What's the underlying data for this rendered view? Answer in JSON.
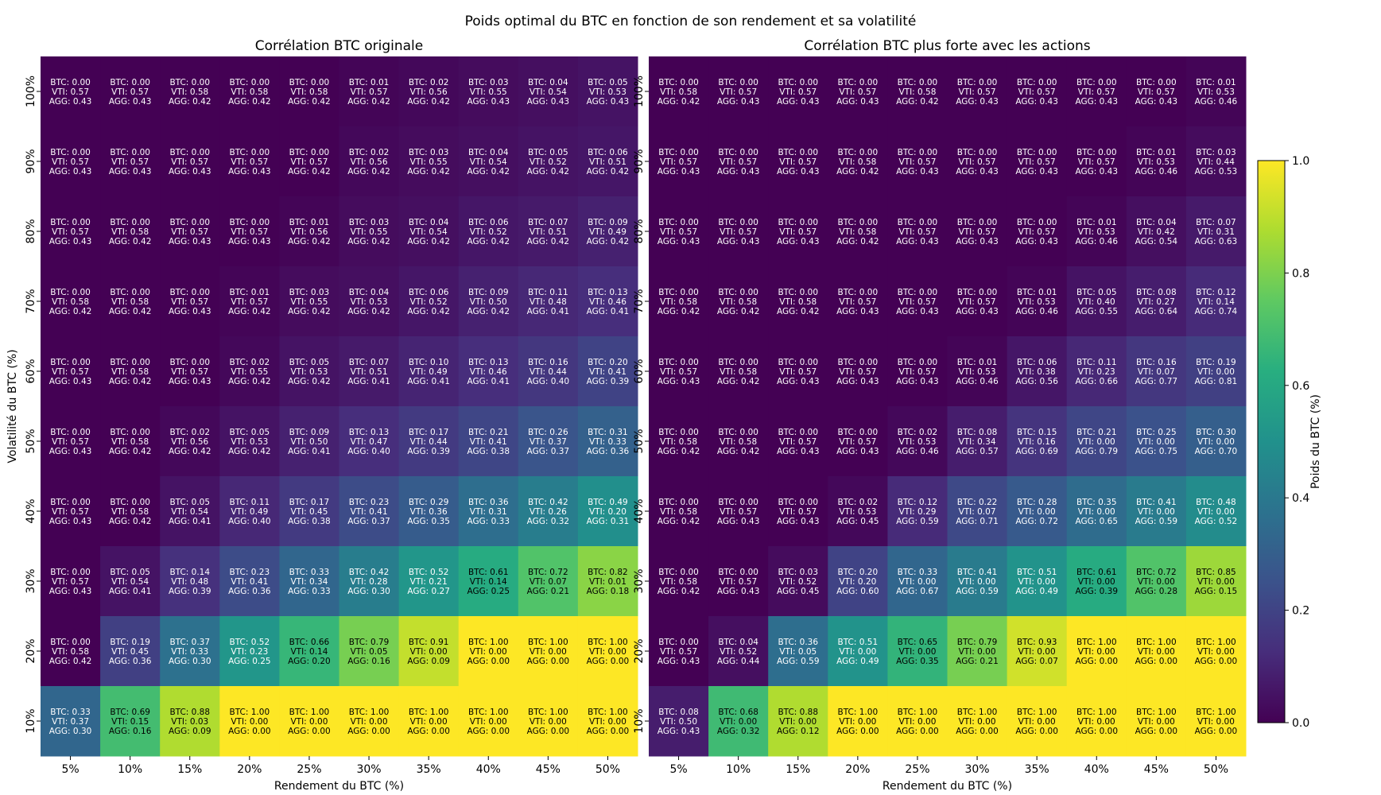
{
  "title": "Poids optimal du BTC en fonction de son rendement et sa volatilité",
  "chart_data": [
    {
      "type": "heatmap",
      "title": "Corrélation BTC originale",
      "xlabel": "Rendement du BTC (%)",
      "ylabel": "Volatilité du BTC (%)",
      "x_categories": [
        "5%",
        "10%",
        "15%",
        "20%",
        "25%",
        "30%",
        "35%",
        "40%",
        "45%",
        "50%"
      ],
      "y_categories": [
        "100%",
        "90%",
        "80%",
        "70%",
        "60%",
        "50%",
        "40%",
        "30%",
        "20%",
        "10%"
      ],
      "labels": [
        "BTC",
        "VTI",
        "AGG"
      ],
      "btc": [
        [
          0.0,
          0.0,
          0.0,
          0.0,
          0.0,
          0.01,
          0.02,
          0.03,
          0.04,
          0.05
        ],
        [
          0.0,
          0.0,
          0.0,
          0.0,
          0.0,
          0.02,
          0.03,
          0.04,
          0.05,
          0.06
        ],
        [
          0.0,
          0.0,
          0.0,
          0.0,
          0.01,
          0.03,
          0.04,
          0.06,
          0.07,
          0.09
        ],
        [
          0.0,
          0.0,
          0.0,
          0.01,
          0.03,
          0.04,
          0.06,
          0.09,
          0.11,
          0.13
        ],
        [
          0.0,
          0.0,
          0.0,
          0.02,
          0.05,
          0.07,
          0.1,
          0.13,
          0.16,
          0.2
        ],
        [
          0.0,
          0.0,
          0.02,
          0.05,
          0.09,
          0.13,
          0.17,
          0.21,
          0.26,
          0.31
        ],
        [
          0.0,
          0.0,
          0.05,
          0.11,
          0.17,
          0.23,
          0.29,
          0.36,
          0.42,
          0.49
        ],
        [
          0.0,
          0.05,
          0.14,
          0.23,
          0.33,
          0.42,
          0.52,
          0.61,
          0.72,
          0.82
        ],
        [
          0.0,
          0.19,
          0.37,
          0.52,
          0.66,
          0.79,
          0.91,
          1.0,
          1.0,
          1.0
        ],
        [
          0.33,
          0.69,
          0.88,
          1.0,
          1.0,
          1.0,
          1.0,
          1.0,
          1.0,
          1.0
        ]
      ],
      "vti": [
        [
          0.57,
          0.57,
          0.58,
          0.58,
          0.58,
          0.57,
          0.56,
          0.55,
          0.54,
          0.53
        ],
        [
          0.57,
          0.57,
          0.57,
          0.57,
          0.57,
          0.56,
          0.55,
          0.54,
          0.52,
          0.51
        ],
        [
          0.57,
          0.58,
          0.57,
          0.57,
          0.56,
          0.55,
          0.54,
          0.52,
          0.51,
          0.49
        ],
        [
          0.58,
          0.58,
          0.57,
          0.57,
          0.55,
          0.53,
          0.52,
          0.5,
          0.48,
          0.46
        ],
        [
          0.57,
          0.58,
          0.57,
          0.55,
          0.53,
          0.51,
          0.49,
          0.46,
          0.44,
          0.41
        ],
        [
          0.57,
          0.58,
          0.56,
          0.53,
          0.5,
          0.47,
          0.44,
          0.41,
          0.37,
          0.33
        ],
        [
          0.57,
          0.58,
          0.54,
          0.49,
          0.45,
          0.41,
          0.36,
          0.31,
          0.26,
          0.2
        ],
        [
          0.57,
          0.54,
          0.48,
          0.41,
          0.34,
          0.28,
          0.21,
          0.14,
          0.07,
          0.01
        ],
        [
          0.58,
          0.45,
          0.33,
          0.23,
          0.14,
          0.05,
          0.0,
          0.0,
          0.0,
          0.0
        ],
        [
          0.37,
          0.15,
          0.03,
          0.0,
          0.0,
          0.0,
          0.0,
          0.0,
          0.0,
          0.0
        ]
      ],
      "agg": [
        [
          0.43,
          0.43,
          0.42,
          0.42,
          0.42,
          0.42,
          0.42,
          0.43,
          0.43,
          0.43
        ],
        [
          0.43,
          0.43,
          0.43,
          0.43,
          0.42,
          0.42,
          0.42,
          0.42,
          0.42,
          0.42
        ],
        [
          0.43,
          0.42,
          0.43,
          0.43,
          0.42,
          0.42,
          0.42,
          0.42,
          0.42,
          0.42
        ],
        [
          0.42,
          0.42,
          0.43,
          0.42,
          0.42,
          0.42,
          0.42,
          0.42,
          0.41,
          0.41
        ],
        [
          0.43,
          0.42,
          0.43,
          0.42,
          0.42,
          0.41,
          0.41,
          0.41,
          0.4,
          0.39
        ],
        [
          0.43,
          0.42,
          0.42,
          0.42,
          0.41,
          0.4,
          0.39,
          0.38,
          0.37,
          0.36
        ],
        [
          0.43,
          0.42,
          0.41,
          0.4,
          0.38,
          0.37,
          0.35,
          0.33,
          0.32,
          0.31
        ],
        [
          0.43,
          0.41,
          0.39,
          0.36,
          0.33,
          0.3,
          0.27,
          0.25,
          0.21,
          0.18
        ],
        [
          0.42,
          0.36,
          0.3,
          0.25,
          0.2,
          0.16,
          0.09,
          0.0,
          0.0,
          0.0
        ],
        [
          0.3,
          0.16,
          0.09,
          0.0,
          0.0,
          0.0,
          0.0,
          0.0,
          0.0,
          0.0
        ]
      ]
    },
    {
      "type": "heatmap",
      "title": "Corrélation BTC plus forte avec les actions",
      "xlabel": "Rendement du BTC (%)",
      "x_categories": [
        "5%",
        "10%",
        "15%",
        "20%",
        "25%",
        "30%",
        "35%",
        "40%",
        "45%",
        "50%"
      ],
      "y_categories": [
        "100%",
        "90%",
        "80%",
        "70%",
        "60%",
        "50%",
        "40%",
        "30%",
        "20%",
        "10%"
      ],
      "labels": [
        "BTC",
        "VTI",
        "AGG"
      ],
      "btc": [
        [
          0.0,
          0.0,
          0.0,
          0.0,
          0.0,
          0.0,
          0.0,
          0.0,
          0.0,
          0.01
        ],
        [
          0.0,
          0.0,
          0.0,
          0.0,
          0.0,
          0.0,
          0.0,
          0.0,
          0.01,
          0.03
        ],
        [
          0.0,
          0.0,
          0.0,
          0.0,
          0.0,
          0.0,
          0.0,
          0.01,
          0.04,
          0.07
        ],
        [
          0.0,
          0.0,
          0.0,
          0.0,
          0.0,
          0.0,
          0.01,
          0.05,
          0.08,
          0.12
        ],
        [
          0.0,
          0.0,
          0.0,
          0.0,
          0.0,
          0.01,
          0.06,
          0.11,
          0.16,
          0.19
        ],
        [
          0.0,
          0.0,
          0.0,
          0.0,
          0.02,
          0.08,
          0.15,
          0.21,
          0.25,
          0.3
        ],
        [
          0.0,
          0.0,
          0.0,
          0.02,
          0.12,
          0.22,
          0.28,
          0.35,
          0.41,
          0.48
        ],
        [
          0.0,
          0.0,
          0.03,
          0.2,
          0.33,
          0.41,
          0.51,
          0.61,
          0.72,
          0.85
        ],
        [
          0.0,
          0.04,
          0.36,
          0.51,
          0.65,
          0.79,
          0.93,
          1.0,
          1.0,
          1.0
        ],
        [
          0.08,
          0.68,
          0.88,
          1.0,
          1.0,
          1.0,
          1.0,
          1.0,
          1.0,
          1.0
        ]
      ],
      "vti": [
        [
          0.58,
          0.57,
          0.57,
          0.57,
          0.58,
          0.57,
          0.57,
          0.57,
          0.57,
          0.53
        ],
        [
          0.57,
          0.57,
          0.57,
          0.58,
          0.57,
          0.57,
          0.57,
          0.57,
          0.53,
          0.44
        ],
        [
          0.57,
          0.57,
          0.57,
          0.58,
          0.57,
          0.57,
          0.57,
          0.53,
          0.42,
          0.31
        ],
        [
          0.58,
          0.58,
          0.58,
          0.57,
          0.57,
          0.57,
          0.53,
          0.4,
          0.27,
          0.14
        ],
        [
          0.57,
          0.58,
          0.57,
          0.57,
          0.57,
          0.53,
          0.38,
          0.23,
          0.07,
          0.0
        ],
        [
          0.58,
          0.58,
          0.57,
          0.57,
          0.53,
          0.34,
          0.16,
          0.0,
          0.0,
          0.0
        ],
        [
          0.58,
          0.57,
          0.57,
          0.53,
          0.29,
          0.07,
          0.0,
          0.0,
          0.0,
          0.0
        ],
        [
          0.58,
          0.57,
          0.52,
          0.2,
          0.0,
          0.0,
          0.0,
          0.0,
          0.0,
          0.0
        ],
        [
          0.57,
          0.52,
          0.05,
          0.0,
          0.0,
          0.0,
          0.0,
          0.0,
          0.0,
          0.0
        ],
        [
          0.5,
          0.0,
          0.0,
          0.0,
          0.0,
          0.0,
          0.0,
          0.0,
          0.0,
          0.0
        ]
      ],
      "agg": [
        [
          0.42,
          0.43,
          0.43,
          0.43,
          0.42,
          0.43,
          0.43,
          0.43,
          0.43,
          0.46
        ],
        [
          0.43,
          0.43,
          0.43,
          0.42,
          0.43,
          0.43,
          0.43,
          0.43,
          0.46,
          0.53
        ],
        [
          0.43,
          0.43,
          0.43,
          0.42,
          0.43,
          0.43,
          0.43,
          0.46,
          0.54,
          0.63
        ],
        [
          0.42,
          0.42,
          0.42,
          0.43,
          0.43,
          0.43,
          0.46,
          0.55,
          0.64,
          0.74
        ],
        [
          0.43,
          0.42,
          0.43,
          0.43,
          0.43,
          0.46,
          0.56,
          0.66,
          0.77,
          0.81
        ],
        [
          0.42,
          0.42,
          0.43,
          0.43,
          0.46,
          0.57,
          0.69,
          0.79,
          0.75,
          0.7
        ],
        [
          0.42,
          0.43,
          0.43,
          0.45,
          0.59,
          0.71,
          0.72,
          0.65,
          0.59,
          0.52
        ],
        [
          0.42,
          0.43,
          0.45,
          0.6,
          0.67,
          0.59,
          0.49,
          0.39,
          0.28,
          0.15
        ],
        [
          0.43,
          0.44,
          0.59,
          0.49,
          0.35,
          0.21,
          0.07,
          0.0,
          0.0,
          0.0
        ],
        [
          0.43,
          0.32,
          0.12,
          0.0,
          0.0,
          0.0,
          0.0,
          0.0,
          0.0,
          0.0
        ]
      ]
    }
  ],
  "colorbar": {
    "label": "Poids du BTC (%)",
    "range": [
      0,
      1
    ],
    "ticks": [
      "0.0",
      "0.2",
      "0.4",
      "0.6",
      "0.8",
      "1.0"
    ],
    "colormap": "viridis"
  }
}
